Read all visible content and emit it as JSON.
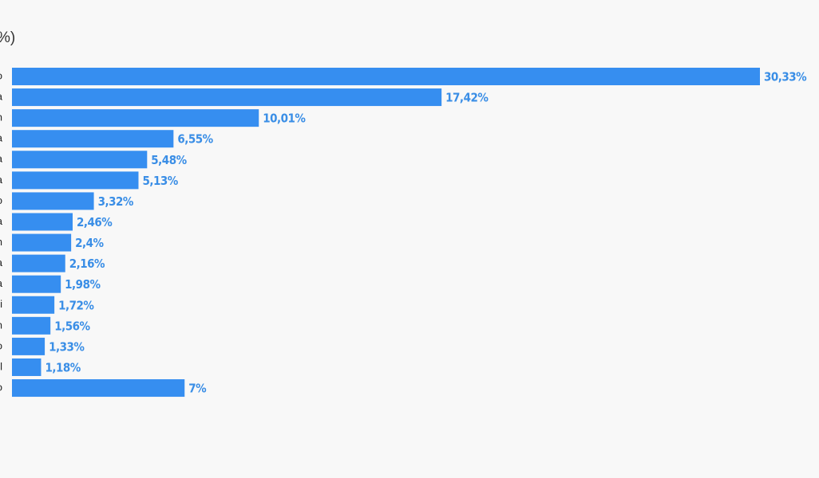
{
  "chart_data": {
    "type": "bar",
    "orientation": "horizontal",
    "title": "%)",
    "categories": [
      "o",
      "a",
      "n",
      "a",
      "a",
      "a",
      "o",
      "a",
      "n",
      "a",
      "a",
      "i",
      "n",
      "o",
      "l",
      "o"
    ],
    "values": [
      30.33,
      17.42,
      10.01,
      6.55,
      5.48,
      5.13,
      3.32,
      2.46,
      2.4,
      2.16,
      1.98,
      1.72,
      1.56,
      1.33,
      1.18,
      7
    ],
    "value_labels": [
      "30,33%",
      "17,42%",
      "10,01%",
      "6,55%",
      "5,48%",
      "5,13%",
      "3,32%",
      "2,46%",
      "2,4%",
      "2,16%",
      "1,98%",
      "1,72%",
      "1,56%",
      "1,33%",
      "1,18%",
      "7%"
    ],
    "color": "#368ef0",
    "label_color": "#3a8ee6"
  }
}
